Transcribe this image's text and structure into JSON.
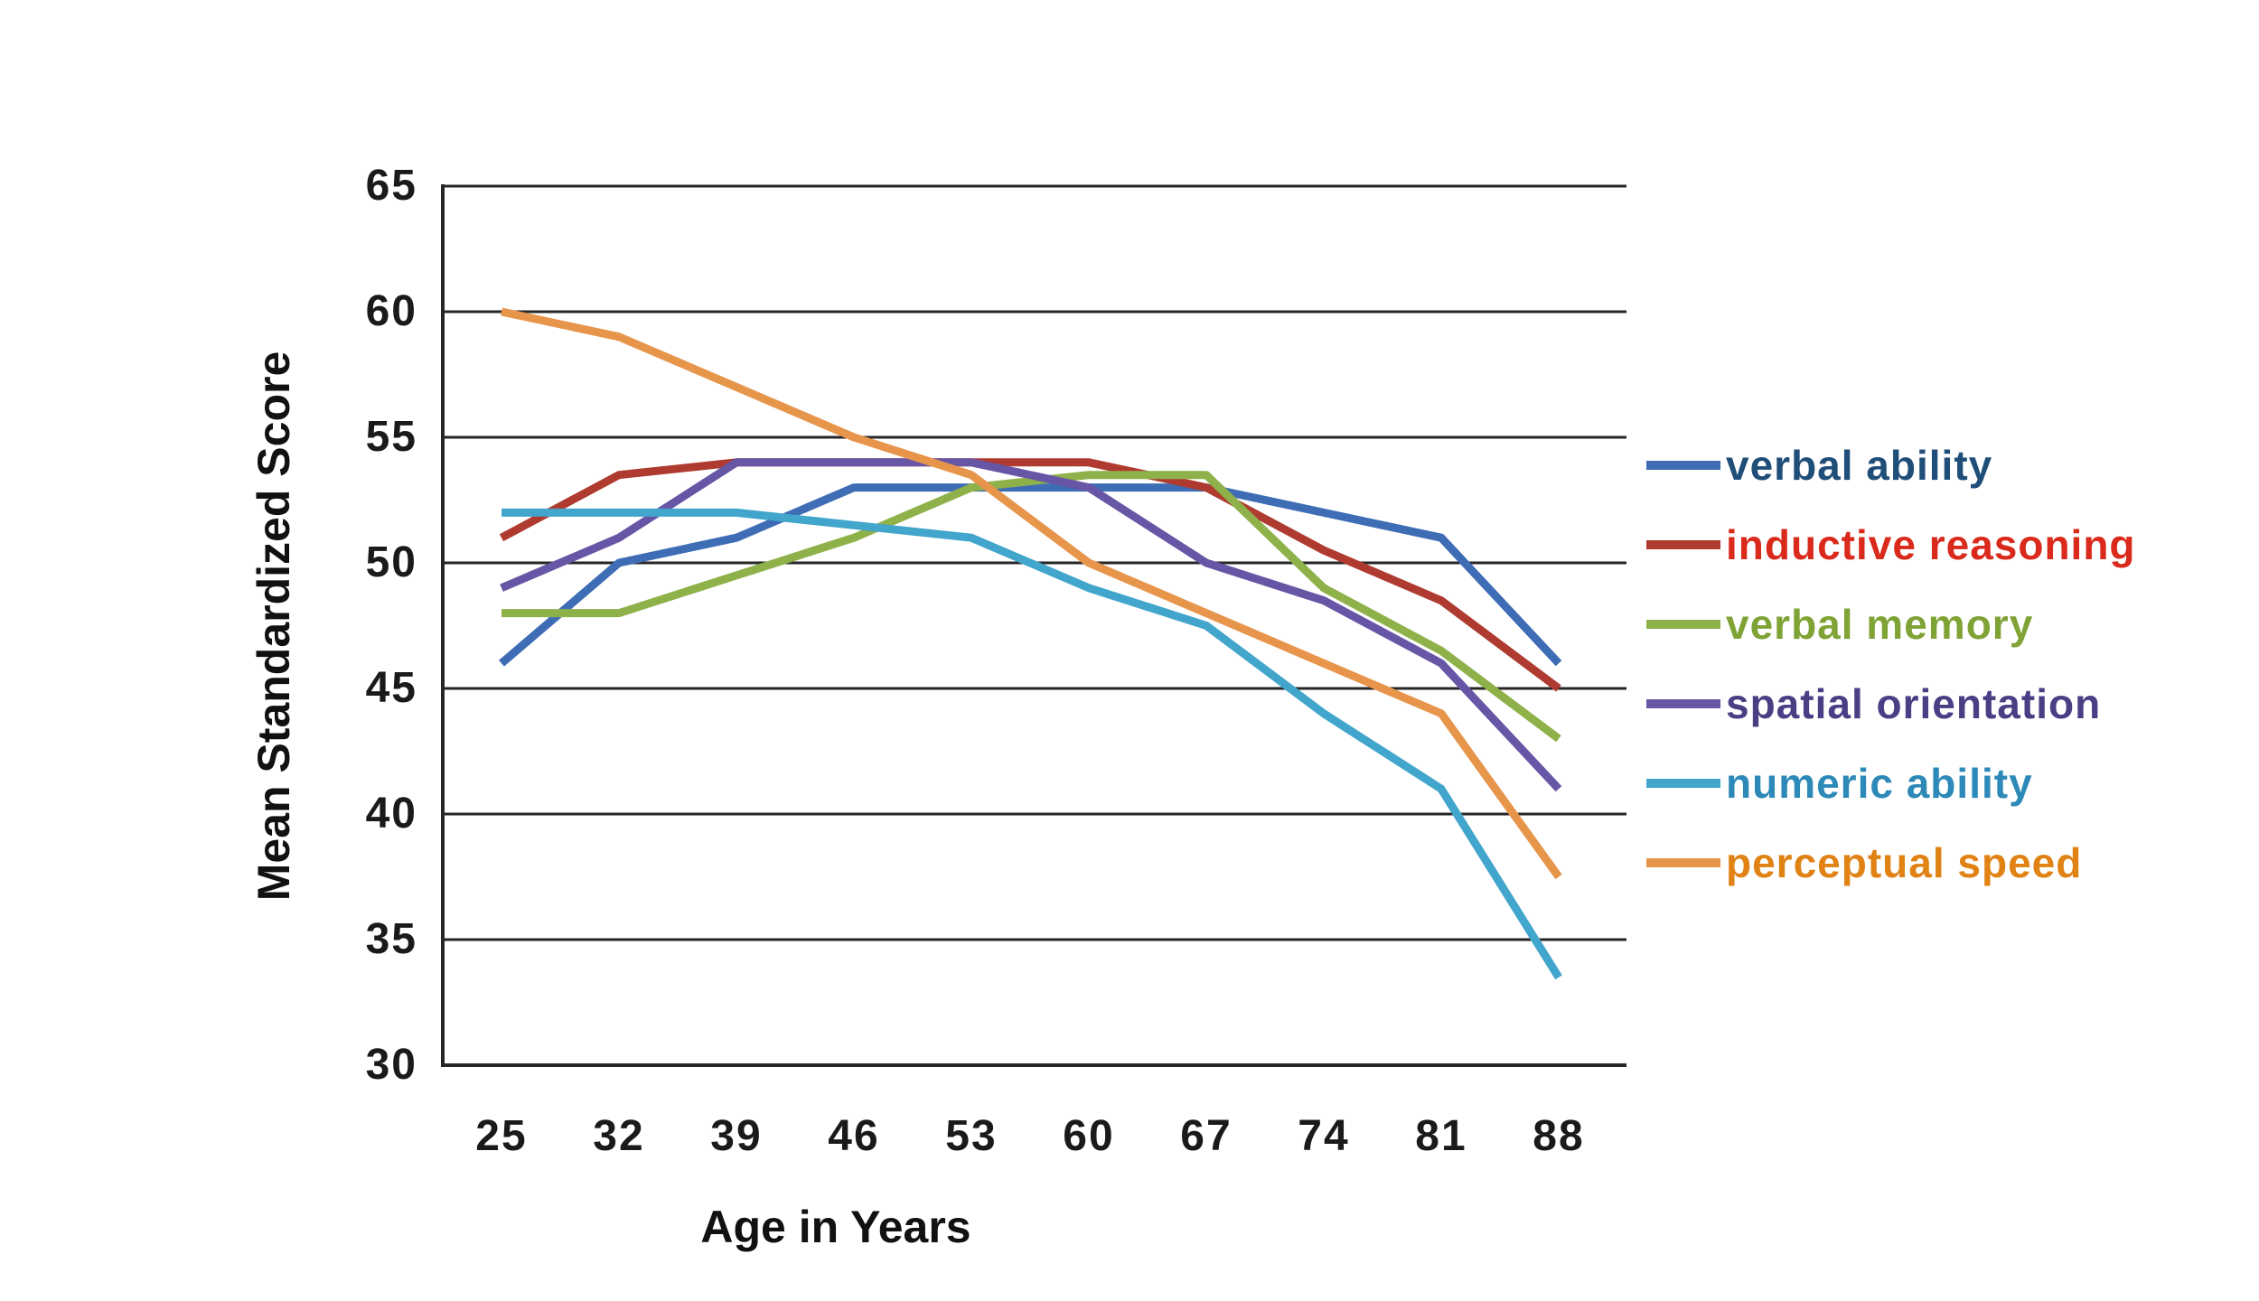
{
  "chart_data": {
    "type": "line",
    "title": "",
    "xlabel": "Age in Years",
    "ylabel": "Mean Standardized Score",
    "x_ticks": [
      25,
      32,
      39,
      46,
      53,
      60,
      67,
      74,
      81,
      88
    ],
    "y_ticks": [
      65,
      60,
      55,
      50,
      45,
      40,
      35,
      30
    ],
    "ylim": [
      30,
      65
    ],
    "xlim_ages": [
      25,
      88
    ],
    "grid": "horizontal",
    "legend_position": "right",
    "axis_color": "#262626",
    "text_color": "#1a1a1a",
    "background_color": "#ffffff",
    "series": [
      {
        "name": "verbal ability",
        "color": "#3E6DB5",
        "label_color": "#1F4E79",
        "values": [
          46,
          50,
          51,
          53,
          53,
          53,
          53,
          52,
          51,
          46
        ]
      },
      {
        "name": "inductive reasoning",
        "color": "#AF3B30",
        "label_color": "#D92A1C",
        "values": [
          51,
          53.5,
          54,
          54,
          54,
          54,
          53,
          50.5,
          48.5,
          45
        ]
      },
      {
        "name": "verbal memory",
        "color": "#8EB14A",
        "label_color": "#7FA335",
        "values": [
          48,
          48,
          49.5,
          51,
          53,
          53.5,
          53.5,
          49,
          46.5,
          43
        ]
      },
      {
        "name": "spatial orientation",
        "color": "#6656A5",
        "label_color": "#4A3E85",
        "values": [
          49,
          51,
          54,
          54,
          54,
          53,
          50,
          48.5,
          46,
          41
        ]
      },
      {
        "name": "numeric ability",
        "color": "#41A5CC",
        "label_color": "#2C89B8",
        "values": [
          52,
          52,
          52,
          51.5,
          51,
          49,
          47.5,
          44,
          41,
          33.5
        ]
      },
      {
        "name": "perceptual speed",
        "color": "#E8954C",
        "label_color": "#E08214",
        "values": [
          60,
          59,
          57,
          55,
          53.5,
          50,
          48,
          46,
          44,
          37.5
        ]
      }
    ]
  }
}
